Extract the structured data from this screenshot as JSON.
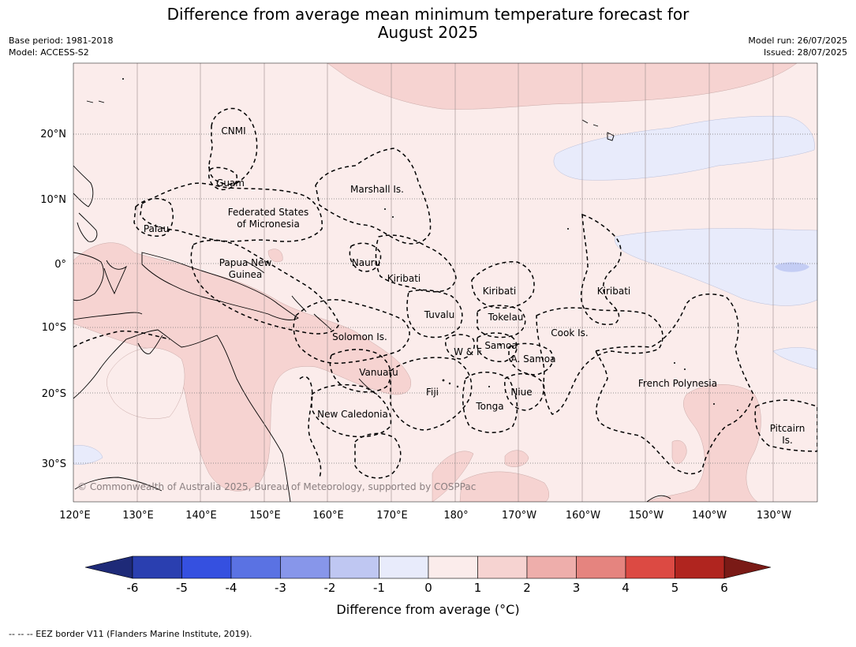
{
  "title": {
    "line1": "Difference from average mean minimum temperature forecast for",
    "line2": "August 2025"
  },
  "meta_left": {
    "base_period": "Base period: 1981-2018",
    "model": "Model: ACCESS-S2"
  },
  "meta_right": {
    "model_run": "Model run: 26/07/2025",
    "issued": "Issued: 28/07/2025"
  },
  "map": {
    "lon_labels": [
      "120°E",
      "130°E",
      "140°E",
      "150°E",
      "160°E",
      "170°E",
      "180°",
      "170°W",
      "160°W",
      "150°W",
      "140°W",
      "130°W"
    ],
    "lat_labels": [
      "20°N",
      "10°N",
      "0°",
      "10°S",
      "20°S",
      "30°S"
    ],
    "copyright": "© Commonwealth of Australia 2025, Bureau of Meteorology, supported by COSPPac",
    "region_labels": [
      {
        "id": "cnmi",
        "text": "CNMI"
      },
      {
        "id": "guam",
        "text": "Guam"
      },
      {
        "id": "marshall",
        "text": "Marshall Is."
      },
      {
        "id": "fsm1",
        "text": "Federated States"
      },
      {
        "id": "fsm2",
        "text": "of Micronesia"
      },
      {
        "id": "palau",
        "text": "Palau"
      },
      {
        "id": "png1",
        "text": "Papua New"
      },
      {
        "id": "png2",
        "text": "Guinea"
      },
      {
        "id": "nauru",
        "text": "Nauru"
      },
      {
        "id": "kiribati_w",
        "text": "Kiribati"
      },
      {
        "id": "kiribati_c",
        "text": "Kiribati"
      },
      {
        "id": "kiribati_e",
        "text": "Kiribati"
      },
      {
        "id": "tuvalu",
        "text": "Tuvalu"
      },
      {
        "id": "tokelau",
        "text": "Tokelau"
      },
      {
        "id": "cook",
        "text": "Cook Is."
      },
      {
        "id": "solomon",
        "text": "Solomon Is."
      },
      {
        "id": "wf",
        "text": "W & F"
      },
      {
        "id": "samoa",
        "text": "Samoa"
      },
      {
        "id": "asamoa",
        "text": "A. Samoa"
      },
      {
        "id": "vanuatu",
        "text": "Vanuatu"
      },
      {
        "id": "fiji",
        "text": "Fiji"
      },
      {
        "id": "niue",
        "text": "Niue"
      },
      {
        "id": "tonga",
        "text": "Tonga"
      },
      {
        "id": "frpoly",
        "text": "French Polynesia"
      },
      {
        "id": "newcal",
        "text": "New Caledonia"
      },
      {
        "id": "pitcairn1",
        "text": "Pitcairn"
      },
      {
        "id": "pitcairn2",
        "text": "Is."
      }
    ]
  },
  "colorbar": {
    "ticks": [
      "-6",
      "-5",
      "-4",
      "-3",
      "-2",
      "-1",
      "0",
      "1",
      "2",
      "3",
      "4",
      "5",
      "6"
    ],
    "colors": [
      "#2a3fb0",
      "#3550e0",
      "#5a72e3",
      "#8796ea",
      "#bfc7f2",
      "#e8ebfb",
      "#fbeceb",
      "#f6d3d1",
      "#eeaeab",
      "#e5847f",
      "#dc4a43",
      "#b0251f"
    ],
    "under_color": "#1e2a78",
    "over_color": "#7a1a16",
    "label": "Difference from average (°C)"
  },
  "footer": {
    "note": "--  --  -- EEZ border V11 (Flanders Marine Institute, 2019)."
  }
}
